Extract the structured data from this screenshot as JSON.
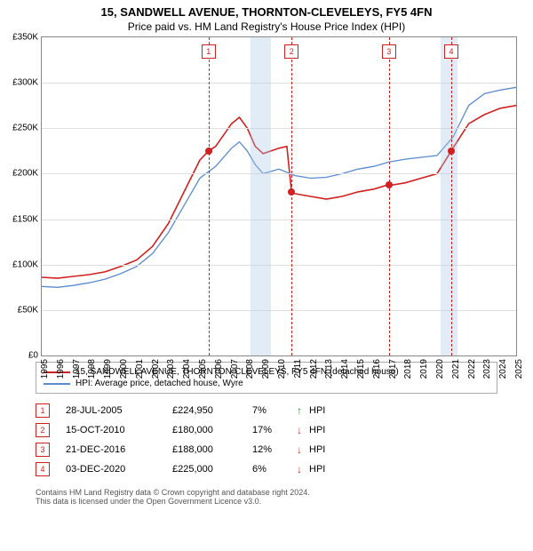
{
  "title": "15, SANDWELL AVENUE, THORNTON-CLEVELEYS, FY5 4FN",
  "subtitle": "Price paid vs. HM Land Registry's House Price Index (HPI)",
  "chart": {
    "type": "line",
    "background_color": "#ffffff",
    "grid_color": "#e0e0e0",
    "axis_color": "#888888",
    "y": {
      "min": 0,
      "max": 350000,
      "step": 50000,
      "format": "£{k}K",
      "zero": "£0",
      "fontsize": 10
    },
    "x": {
      "min": 1995,
      "max": 2025,
      "step": 1,
      "fontsize": 10
    },
    "bands": [
      {
        "from": 2008.2,
        "to": 2009.5
      },
      {
        "from": 2020.2,
        "to": 2021.3
      }
    ],
    "band_color": "rgba(173,200,230,0.35)",
    "vlines": [
      2005.55,
      2010.8,
      2016.95,
      2020.9
    ],
    "vline_color": "#d02020",
    "marker_boxes": [
      "1",
      "2",
      "3",
      "4"
    ],
    "series": [
      {
        "name": "property",
        "label": "15, SANDWELL AVENUE, THORNTON-CLEVELEYS, FY5 4FN (detached house)",
        "color": "#d02020",
        "width": 1.6,
        "points": [
          [
            1995,
            86000
          ],
          [
            1996,
            85000
          ],
          [
            1997,
            87000
          ],
          [
            1998,
            89000
          ],
          [
            1999,
            92000
          ],
          [
            2000,
            98000
          ],
          [
            2001,
            105000
          ],
          [
            2002,
            120000
          ],
          [
            2003,
            145000
          ],
          [
            2004,
            180000
          ],
          [
            2005,
            215000
          ],
          [
            2005.55,
            224950
          ],
          [
            2006,
            230000
          ],
          [
            2007,
            255000
          ],
          [
            2007.5,
            262000
          ],
          [
            2008,
            250000
          ],
          [
            2008.5,
            230000
          ],
          [
            2009,
            222000
          ],
          [
            2010,
            228000
          ],
          [
            2010.5,
            230000
          ],
          [
            2010.8,
            180000
          ],
          [
            2011,
            178000
          ],
          [
            2012,
            175000
          ],
          [
            2013,
            172000
          ],
          [
            2014,
            175000
          ],
          [
            2015,
            180000
          ],
          [
            2016,
            183000
          ],
          [
            2016.95,
            188000
          ],
          [
            2017,
            187000
          ],
          [
            2018,
            190000
          ],
          [
            2019,
            195000
          ],
          [
            2020,
            200000
          ],
          [
            2020.9,
            225000
          ],
          [
            2021,
            228000
          ],
          [
            2022,
            255000
          ],
          [
            2023,
            265000
          ],
          [
            2024,
            272000
          ],
          [
            2025,
            275000
          ]
        ],
        "sale_markers": [
          {
            "x": 2005.55,
            "y": 224950
          },
          {
            "x": 2010.8,
            "y": 180000
          },
          {
            "x": 2016.95,
            "y": 188000
          },
          {
            "x": 2020.9,
            "y": 225000
          }
        ]
      },
      {
        "name": "hpi",
        "label": "HPI: Average price, detached house, Wyre",
        "color": "#5a8bd0",
        "width": 1.3,
        "points": [
          [
            1995,
            76000
          ],
          [
            1996,
            75000
          ],
          [
            1997,
            77000
          ],
          [
            1998,
            80000
          ],
          [
            1999,
            84000
          ],
          [
            2000,
            90000
          ],
          [
            2001,
            98000
          ],
          [
            2002,
            112000
          ],
          [
            2003,
            135000
          ],
          [
            2004,
            165000
          ],
          [
            2005,
            195000
          ],
          [
            2006,
            208000
          ],
          [
            2007,
            228000
          ],
          [
            2007.5,
            235000
          ],
          [
            2008,
            225000
          ],
          [
            2008.5,
            210000
          ],
          [
            2009,
            200000
          ],
          [
            2010,
            205000
          ],
          [
            2011,
            198000
          ],
          [
            2012,
            195000
          ],
          [
            2013,
            196000
          ],
          [
            2014,
            200000
          ],
          [
            2015,
            205000
          ],
          [
            2016,
            208000
          ],
          [
            2017,
            213000
          ],
          [
            2018,
            216000
          ],
          [
            2019,
            218000
          ],
          [
            2020,
            220000
          ],
          [
            2021,
            240000
          ],
          [
            2022,
            275000
          ],
          [
            2023,
            288000
          ],
          [
            2024,
            292000
          ],
          [
            2025,
            295000
          ]
        ]
      }
    ]
  },
  "legend": [
    {
      "color": "#d02020",
      "label": "15, SANDWELL AVENUE, THORNTON-CLEVELEYS, FY5 4FN (detached house)"
    },
    {
      "color": "#5a8bd0",
      "label": "HPI: Average price, detached house, Wyre"
    }
  ],
  "transactions": [
    {
      "n": "1",
      "date": "28-JUL-2005",
      "price": "£224,950",
      "pct": "7%",
      "arrow": "↑",
      "arrow_color": "#2a8a2a",
      "suffix": "HPI"
    },
    {
      "n": "2",
      "date": "15-OCT-2010",
      "price": "£180,000",
      "pct": "17%",
      "arrow": "↓",
      "arrow_color": "#c03020",
      "suffix": "HPI"
    },
    {
      "n": "3",
      "date": "21-DEC-2016",
      "price": "£188,000",
      "pct": "12%",
      "arrow": "↓",
      "arrow_color": "#c03020",
      "suffix": "HPI"
    },
    {
      "n": "4",
      "date": "03-DEC-2020",
      "price": "£225,000",
      "pct": "6%",
      "arrow": "↓",
      "arrow_color": "#c03020",
      "suffix": "HPI"
    }
  ],
  "footer1": "Contains HM Land Registry data © Crown copyright and database right 2024.",
  "footer2": "This data is licensed under the Open Government Licence v3.0."
}
